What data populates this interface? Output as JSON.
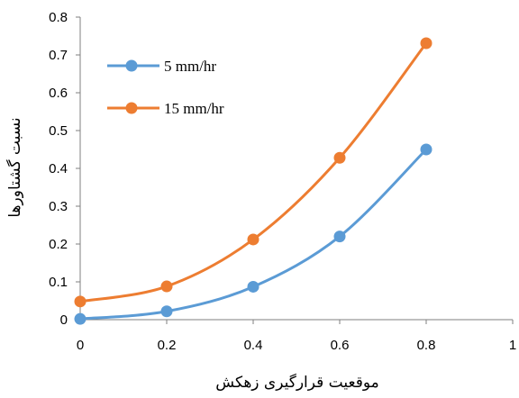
{
  "chart_data": {
    "type": "scatter",
    "smooth": true,
    "xlabel": "موقعیت قرارگیری زهکش",
    "ylabel": "نسبت گشتاورها",
    "xlim": [
      0,
      1
    ],
    "ylim": [
      0,
      0.8
    ],
    "xticks": [
      "0",
      "0.2",
      "0.4",
      "0.6",
      "0.8",
      "1"
    ],
    "yticks": [
      "0",
      "0.1",
      "0.2",
      "0.3",
      "0.4",
      "0.5",
      "0.6",
      "0.7",
      "0.8"
    ],
    "grid": false,
    "legend": "top-left",
    "series": [
      {
        "name": "5 mm/hr",
        "color": "#5b9bd5",
        "x": [
          0,
          0.2,
          0.4,
          0.6,
          0.8
        ],
        "y": [
          0.002,
          0.022,
          0.087,
          0.22,
          0.45
        ]
      },
      {
        "name": "15 mm/hr",
        "color": "#ed7d31",
        "x": [
          0,
          0.2,
          0.4,
          0.6,
          0.8
        ],
        "y": [
          0.048,
          0.088,
          0.212,
          0.428,
          0.731
        ]
      }
    ]
  }
}
